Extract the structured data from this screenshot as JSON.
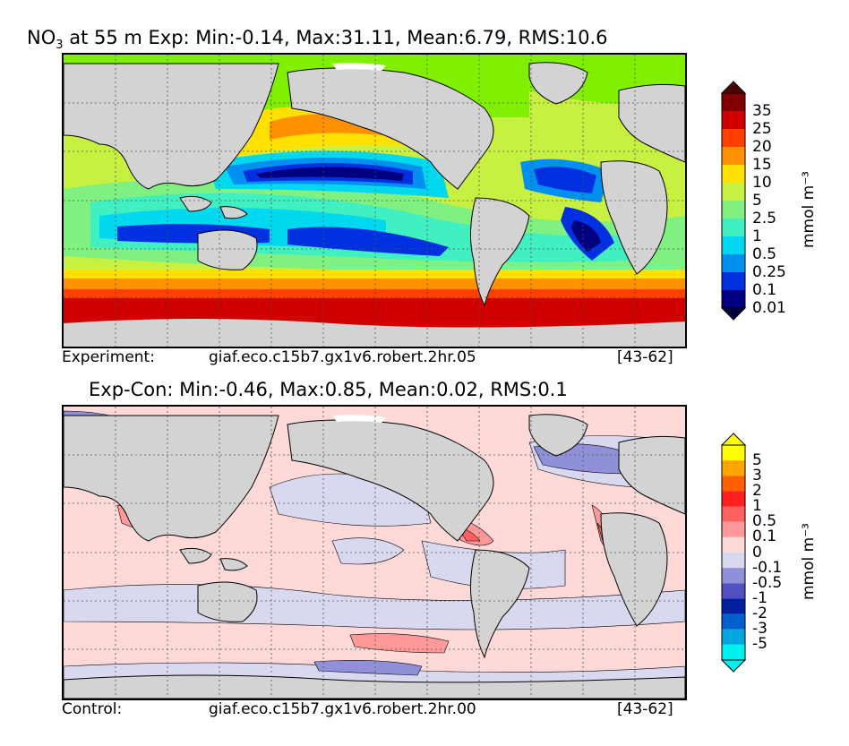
{
  "top_panel": {
    "title_species": "NO",
    "title_subscript": "3",
    "title_rest": " at 55 m Exp: Min:-0.14, Max:31.11, Mean:6.79, RMS:10.6",
    "caption_label": "Experiment:",
    "caption_case": "giaf.eco.c15b7.gx1v6.robert.2hr.05",
    "caption_years": "[43-62]",
    "colorbar": {
      "unit": "mmol m⁻³",
      "ticks": [
        "35",
        "25",
        "20",
        "15",
        "10",
        "5",
        "2.5",
        "1",
        "0.5",
        "0.25",
        "0.1",
        "0.01"
      ],
      "colors_top_to_bottom": [
        "#800000",
        "#d00000",
        "#ff4000",
        "#ff9000",
        "#ffe000",
        "#c8f040",
        "#80f080",
        "#40f0c0",
        "#00d8f0",
        "#0090f0",
        "#0030e0",
        "#000080"
      ],
      "over_color": "#500000",
      "under_color": "#000040"
    }
  },
  "bottom_panel": {
    "title": "Exp-Con: Min:-0.46, Max:0.85, Mean:0.02, RMS:0.1",
    "caption_label": "Control:",
    "caption_case": "giaf.eco.c15b7.gx1v6.robert.2hr.00",
    "caption_years": "[43-62]",
    "colorbar": {
      "unit": "mmol m⁻³",
      "ticks": [
        "5",
        "3",
        "2",
        "1",
        "0.5",
        "0.1",
        "0",
        "-0.1",
        "-0.5",
        "-1",
        "-2",
        "-3",
        "-5"
      ],
      "colors_top_to_bottom": [
        "#ffff00",
        "#ffa500",
        "#ff6000",
        "#ff2020",
        "#ff6060",
        "#ff9898",
        "#ffd8d8",
        "#d8d8f0",
        "#9090d8",
        "#5050c0",
        "#0020a0",
        "#0060d0",
        "#00a8e0",
        "#00f0f0"
      ],
      "over_color": "#ffff00",
      "under_color": "#00f0f0"
    }
  },
  "colors": {
    "land": "#d3d3d3",
    "ice": "#ffffff",
    "grid": "#505050"
  }
}
